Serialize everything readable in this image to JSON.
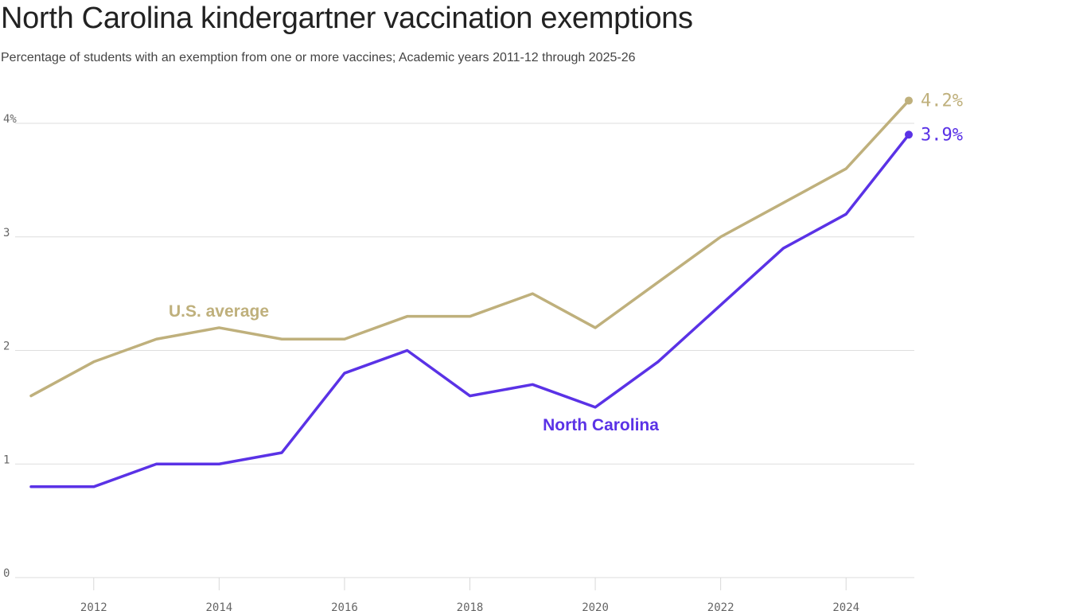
{
  "chart_data": {
    "type": "line",
    "title": "North Carolina kindergartner vaccination exemptions",
    "subtitle": "Percentage of students with an exemption from one or more vaccines; Academic years 2011-12 through 2025-26",
    "x": [
      2011,
      2012,
      2013,
      2014,
      2015,
      2016,
      2017,
      2018,
      2019,
      2020,
      2021,
      2022,
      2023,
      2024,
      2025
    ],
    "series": [
      {
        "name": "U.S. average",
        "color": "#bfb07c",
        "values": [
          1.6,
          1.9,
          2.1,
          2.2,
          2.1,
          2.1,
          2.3,
          2.3,
          2.5,
          2.2,
          2.6,
          3.0,
          3.3,
          3.6,
          4.2
        ],
        "end_label": "4.2%"
      },
      {
        "name": "North Carolina",
        "color": "#5a32e6",
        "values": [
          0.8,
          0.8,
          1.0,
          1.0,
          1.1,
          1.8,
          2.0,
          1.6,
          1.7,
          1.5,
          1.9,
          2.4,
          2.9,
          3.2,
          3.9
        ],
        "end_label": "3.9%"
      }
    ],
    "y_ticks": [
      {
        "value": 0,
        "label": "0"
      },
      {
        "value": 1,
        "label": "1"
      },
      {
        "value": 2,
        "label": "2"
      },
      {
        "value": 3,
        "label": "3"
      },
      {
        "value": 4,
        "label": "4%"
      }
    ],
    "x_ticks": [
      {
        "value": 2012,
        "label": "2012"
      },
      {
        "value": 2014,
        "label": "2014"
      },
      {
        "value": 2016,
        "label": "2016"
      },
      {
        "value": 2018,
        "label": "2018"
      },
      {
        "value": 2020,
        "label": "2020"
      },
      {
        "value": 2022,
        "label": "2022"
      },
      {
        "value": 2024,
        "label": "2024"
      }
    ],
    "ylim": [
      0,
      4.2
    ],
    "xlim": [
      2011,
      2025
    ],
    "grid": true,
    "legend": "inline labels"
  }
}
